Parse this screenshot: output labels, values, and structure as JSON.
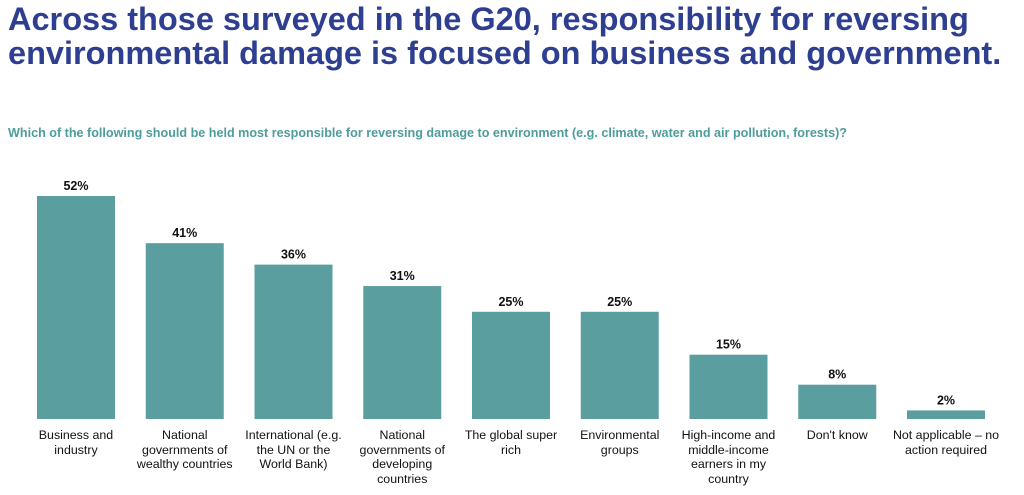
{
  "chart_data": {
    "type": "bar",
    "title": "Across those surveyed in the G20, responsibility for reversing environmental damage is focused on business and government.",
    "subtitle": "Which of the following should be held most responsible for reversing damage to environment (e.g. climate, water and air pollution, forests)?",
    "xlabel": "",
    "ylabel": "",
    "ylim": [
      0,
      52
    ],
    "grid": false,
    "bar_color": "#5b9ea0",
    "categories": [
      "Business and industry",
      "National governments of wealthy countries",
      "International (e.g. the UN or the World Bank)",
      "National governments of developing countries",
      "The global super rich",
      "Environmental groups",
      "High-income and middle-income earners in my country",
      "Don't know",
      "Not applicable – no action required"
    ],
    "values": [
      52,
      41,
      36,
      31,
      25,
      25,
      15,
      8,
      2
    ],
    "data_labels": [
      "52%",
      "41%",
      "36%",
      "31%",
      "25%",
      "25%",
      "15%",
      "8%",
      "2%"
    ]
  }
}
